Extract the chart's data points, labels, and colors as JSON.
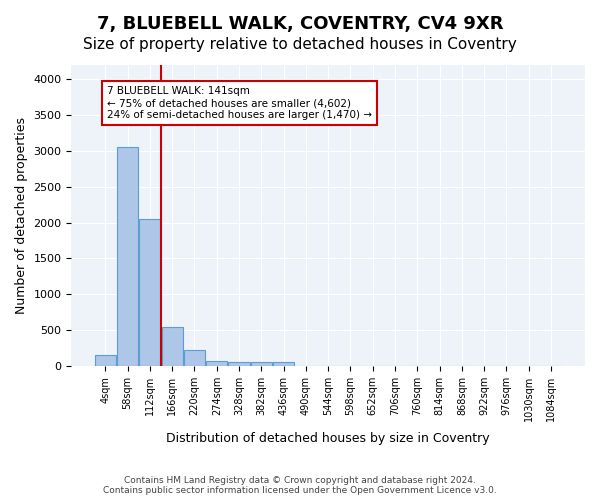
{
  "title1": "7, BLUEBELL WALK, COVENTRY, CV4 9XR",
  "title2": "Size of property relative to detached houses in Coventry",
  "xlabel": "Distribution of detached houses by size in Coventry",
  "ylabel": "Number of detached properties",
  "bin_labels": [
    "4sqm",
    "58sqm",
    "112sqm",
    "166sqm",
    "220sqm",
    "274sqm",
    "328sqm",
    "382sqm",
    "436sqm",
    "490sqm",
    "544sqm",
    "598sqm",
    "652sqm",
    "706sqm",
    "760sqm",
    "814sqm",
    "868sqm",
    "922sqm",
    "976sqm",
    "1030sqm",
    "1084sqm"
  ],
  "bar_values": [
    150,
    3050,
    2050,
    550,
    220,
    75,
    55,
    50,
    60,
    0,
    0,
    0,
    0,
    0,
    0,
    0,
    0,
    0,
    0,
    0,
    0
  ],
  "bar_color": "#aec6e8",
  "bar_edge_color": "#5a9fd4",
  "vline_color": "#cc0000",
  "vline_pos": 2.48,
  "annotation_box_text": "7 BLUEBELL WALK: 141sqm\n← 75% of detached houses are smaller (4,602)\n24% of semi-detached houses are larger (1,470) →",
  "box_edge_color": "#cc0000",
  "ylim": [
    0,
    4200
  ],
  "yticks": [
    0,
    500,
    1000,
    1500,
    2000,
    2500,
    3000,
    3500,
    4000
  ],
  "bg_color": "#eef3fa",
  "footer_text": "Contains HM Land Registry data © Crown copyright and database right 2024.\nContains public sector information licensed under the Open Government Licence v3.0.",
  "title1_fontsize": 13,
  "title2_fontsize": 11
}
